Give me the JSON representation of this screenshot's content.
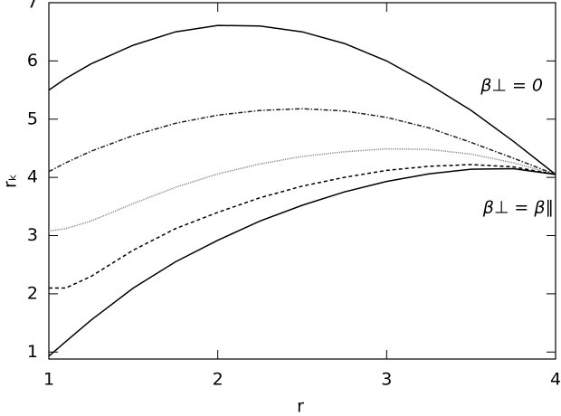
{
  "chart_data": {
    "type": "line",
    "xlabel": "r",
    "ylabel": "rₖ",
    "x": [
      1,
      1.1,
      1.25,
      1.5,
      1.75,
      2,
      2.25,
      2.5,
      2.75,
      3,
      3.25,
      3.5,
      3.75,
      4
    ],
    "series": [
      {
        "color": "#000000",
        "dash": "solid",
        "values": [
          5.5,
          5.7,
          5.95,
          6.27,
          6.5,
          6.61,
          6.6,
          6.5,
          6.3,
          6.0,
          5.6,
          5.15,
          4.62,
          4.05
        ]
      },
      {
        "color": "#222222",
        "dash": "dashdot",
        "values": [
          4.1,
          4.25,
          4.45,
          4.72,
          4.93,
          5.07,
          5.15,
          5.18,
          5.14,
          5.03,
          4.85,
          4.6,
          4.33,
          4.05
        ]
      },
      {
        "color": "#888888",
        "dash": "dotted",
        "values": [
          3.08,
          3.12,
          3.25,
          3.55,
          3.83,
          4.06,
          4.23,
          4.36,
          4.44,
          4.49,
          4.48,
          4.4,
          4.25,
          4.05
        ]
      },
      {
        "color": "#000000",
        "dash": "dashed",
        "values": [
          2.1,
          2.1,
          2.3,
          2.75,
          3.12,
          3.4,
          3.65,
          3.85,
          4.0,
          4.12,
          4.19,
          4.22,
          4.18,
          4.05
        ]
      },
      {
        "color": "#000000",
        "dash": "solid",
        "values": [
          0.93,
          1.18,
          1.55,
          2.1,
          2.55,
          2.92,
          3.25,
          3.52,
          3.75,
          3.93,
          4.06,
          4.14,
          4.15,
          4.05
        ]
      }
    ],
    "annotations": [
      "β⊥ = 0",
      "β⊥ = β∥"
    ],
    "xlim": [
      1,
      4
    ],
    "xticks": [
      1,
      2,
      3,
      4
    ],
    "ylim": [
      0.88,
      7.0
    ],
    "yticks": [
      1,
      2,
      3,
      4,
      5,
      6,
      7
    ],
    "grid": false
  }
}
